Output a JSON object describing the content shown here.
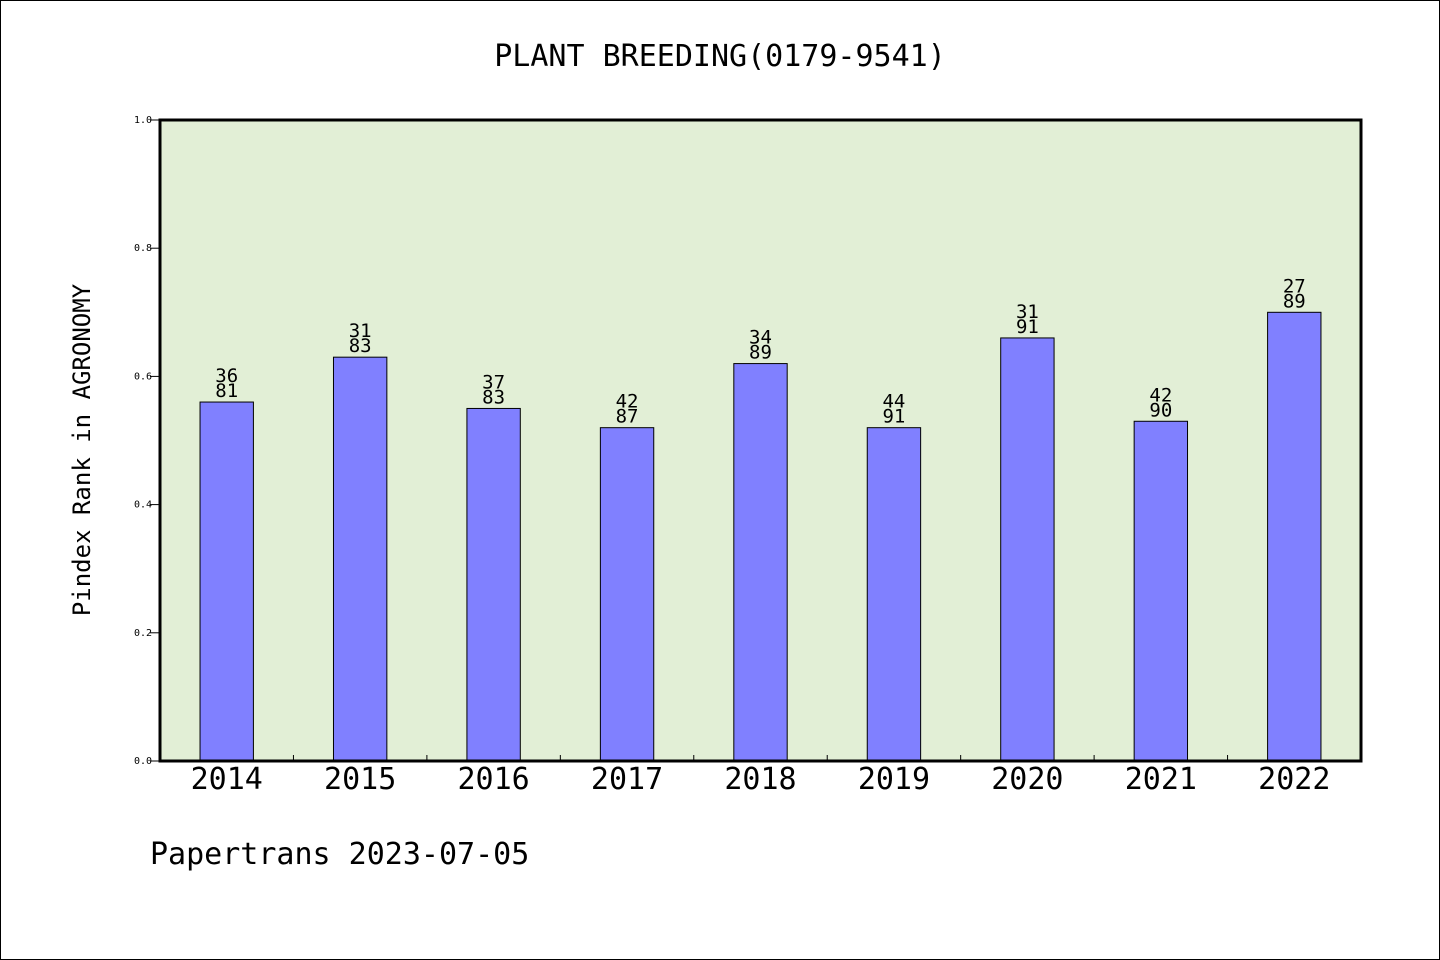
{
  "chart_data": {
    "type": "bar",
    "title": "PLANT BREEDING(0179-9541)",
    "ylabel": "Pindex Rank in AGRONOMY",
    "xlabel": "",
    "categories": [
      "2014",
      "2015",
      "2016",
      "2017",
      "2018",
      "2019",
      "2020",
      "2021",
      "2022"
    ],
    "values": [
      0.56,
      0.63,
      0.55,
      0.52,
      0.62,
      0.52,
      0.66,
      0.53,
      0.7
    ],
    "bar_labels_top": [
      "36",
      "31",
      "37",
      "42",
      "34",
      "44",
      "31",
      "42",
      "27"
    ],
    "bar_labels_bottom": [
      "81",
      "83",
      "83",
      "87",
      "89",
      "91",
      "91",
      "90",
      "89"
    ],
    "ylim": [
      0.0,
      1.0
    ],
    "yticks": [
      "0.0",
      "0.2",
      "0.4",
      "0.6",
      "0.8",
      "1.0"
    ],
    "grid": false,
    "footer": "Papertrans 2023-07-05",
    "colors": {
      "bar": "#8080ff",
      "plot_bg": "#e2efd6",
      "axis": "#000000"
    }
  }
}
